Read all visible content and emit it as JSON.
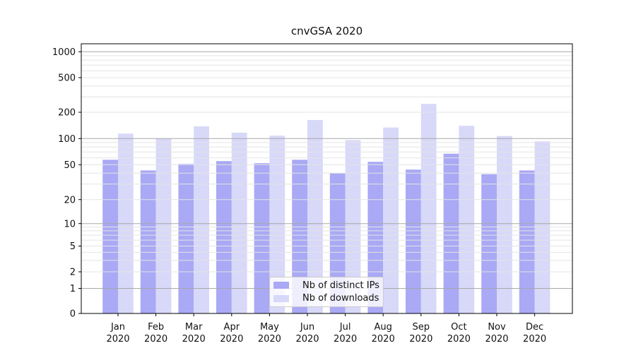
{
  "chart_data": {
    "type": "bar",
    "title": "cnvGSA 2020",
    "categories": [
      "Jan 2020",
      "Feb 2020",
      "Mar 2020",
      "Apr 2020",
      "May 2020",
      "Jun 2020",
      "Jul 2020",
      "Aug 2020",
      "Sep 2020",
      "Oct 2020",
      "Nov 2020",
      "Dec 2020"
    ],
    "series": [
      {
        "name": "Nb of distinct IPs",
        "color": "#a9a9f5",
        "values": [
          57,
          43,
          51,
          55,
          52,
          57,
          40,
          54,
          44,
          67,
          39,
          43
        ]
      },
      {
        "name": "Nb of downloads",
        "color": "#d8d8f9",
        "values": [
          114,
          100,
          138,
          117,
          108,
          163,
          96,
          134,
          250,
          140,
          107,
          93
        ]
      }
    ],
    "xlabel": "",
    "ylabel": "",
    "yscale": "symlog",
    "ytick_labels": [
      "0",
      "1",
      "2",
      "5",
      "10",
      "20",
      "50",
      "100",
      "200",
      "500",
      "1000"
    ],
    "yticks": [
      0,
      1,
      2,
      5,
      10,
      20,
      50,
      100,
      200,
      500,
      1000
    ],
    "ylim": [
      0,
      1250
    ],
    "grid": "horizontal major and minor gridlines, drawn over bars",
    "legend_position": "lower center inside plot"
  },
  "colors": {
    "bar_dark": "#a9a9f5",
    "bar_light": "#d8d8f9",
    "grid_major": "#a8a8a8",
    "grid_minor": "#e4e4e4",
    "spine": "#000000",
    "text": "#111111",
    "legend_border": "#cccccc",
    "background": "#ffffff"
  }
}
